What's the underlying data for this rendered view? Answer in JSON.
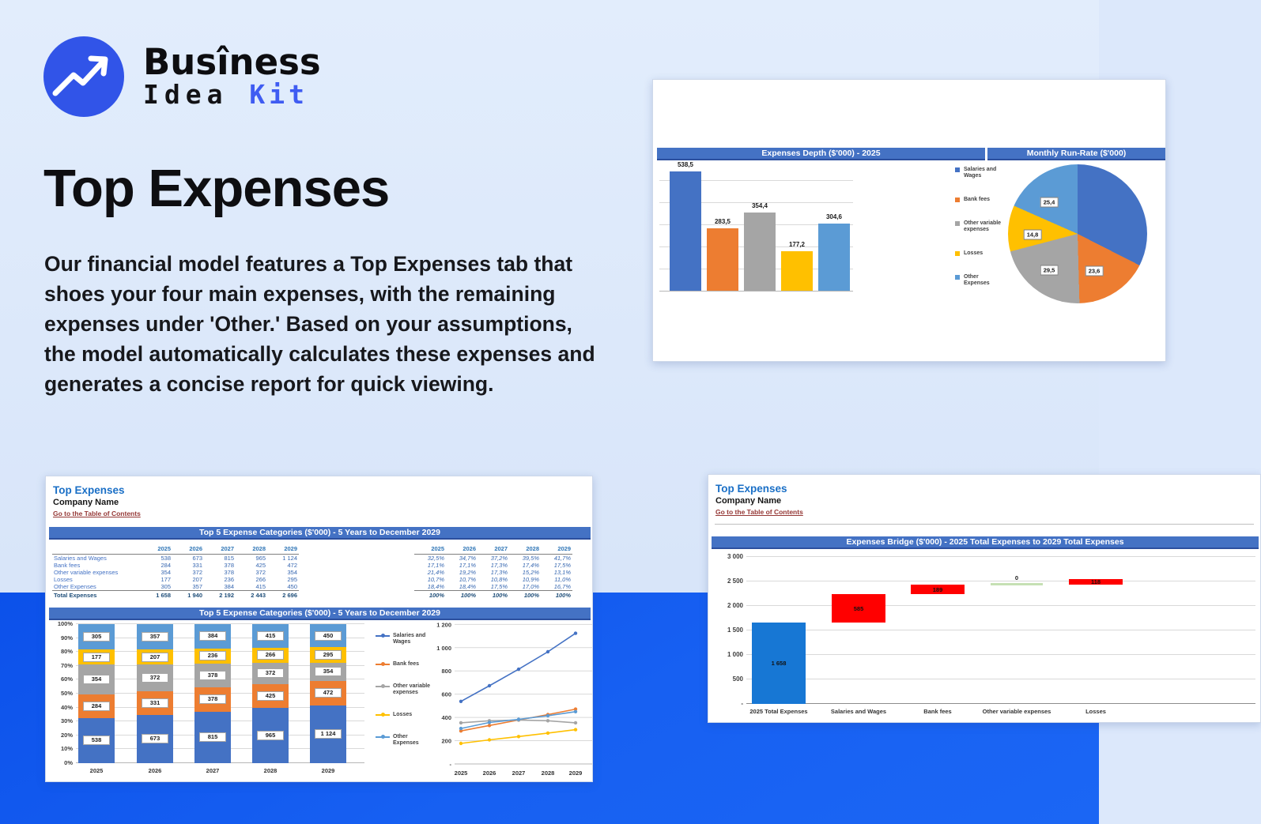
{
  "logo": {
    "brand_top": "Busîness",
    "brand_idea": "Idea",
    "brand_kit": "Kit",
    "icon": "trend-up-arrow",
    "circle_color": "#3154e8",
    "kit_color": "#3f5cf2"
  },
  "hero": {
    "title": "Top Expenses",
    "paragraph": "Our financial model features a Top Expenses tab that shoes your four main expenses, with the remaining expenses under 'Other.' Based on your assumptions, the model automatically calculates these expenses and generates a concise report for quick viewing."
  },
  "palette": {
    "series_names": [
      "Salaries and Wages",
      "Bank fees",
      "Other variable expenses",
      "Losses",
      "Other Expenses"
    ],
    "series_colors": [
      "#4472C4",
      "#ED7D31",
      "#A5A5A5",
      "#FFC000",
      "#5B9BD5"
    ],
    "header_bar": "#4472C4",
    "waterfall_total": "#1777D4",
    "waterfall_increase": "#FF0000",
    "waterfall_zero": "#C6E0B4",
    "link_color": "#953735"
  },
  "depth_card": {
    "bar_title": "Expenses Depth ($'000) - 2025",
    "pie_title": "Monthly Run-Rate ($'000)"
  },
  "sheet1": {
    "title": "Top Expenses",
    "company": "Company Name",
    "link": "Go to the Table of Contents",
    "table_header": "Top 5 Expense Categories ($'000) - 5 Years to December 2029",
    "chart_header": "Top 5 Expense Categories ($'000) - 5 Years to December 2029",
    "years": [
      "2025",
      "2026",
      "2027",
      "2028",
      "2029"
    ],
    "rows": [
      {
        "label": "Salaries and Wages",
        "values": [
          "538",
          "673",
          "815",
          "965",
          "1 124"
        ],
        "pcts": [
          "32,5%",
          "34,7%",
          "37,2%",
          "39,5%",
          "41,7%"
        ]
      },
      {
        "label": "Bank fees",
        "values": [
          "284",
          "331",
          "378",
          "425",
          "472"
        ],
        "pcts": [
          "17,1%",
          "17,1%",
          "17,3%",
          "17,4%",
          "17,5%"
        ]
      },
      {
        "label": "Other variable expenses",
        "values": [
          "354",
          "372",
          "378",
          "372",
          "354"
        ],
        "pcts": [
          "21,4%",
          "19,2%",
          "17,3%",
          "15,2%",
          "13,1%"
        ]
      },
      {
        "label": "Losses",
        "values": [
          "177",
          "207",
          "236",
          "266",
          "295"
        ],
        "pcts": [
          "10,7%",
          "10,7%",
          "10,8%",
          "10,9%",
          "11,0%"
        ]
      },
      {
        "label": "Other Expenses",
        "values": [
          "305",
          "357",
          "384",
          "415",
          "450"
        ],
        "pcts": [
          "18,4%",
          "18,4%",
          "17,5%",
          "17,0%",
          "16,7%"
        ]
      }
    ],
    "total": {
      "label": "Total Expenses",
      "values": [
        "1 658",
        "1 940",
        "2 192",
        "2 443",
        "2 696"
      ],
      "pcts": [
        "100%",
        "100%",
        "100%",
        "100%",
        "100%"
      ]
    }
  },
  "sheet2": {
    "title": "Top Expenses",
    "company": "Company Name",
    "link": "Go to the Table of Contents",
    "chart_header": "Expenses Bridge ($'000) - 2025 Total Expenses to 2029 Total Expenses"
  },
  "chart_data": [
    {
      "id": "expenses_depth",
      "type": "bar",
      "title": "Expenses Depth ($'000) - 2025",
      "categories": [
        "Salaries and Wages",
        "Bank fees",
        "Other variable expenses",
        "Losses",
        "Other Expenses"
      ],
      "values": [
        538.5,
        283.5,
        354.4,
        177.2,
        304.6
      ],
      "labels": [
        "538,5",
        "283,5",
        "354,4",
        "177,2",
        "304,6"
      ],
      "ylim": [
        0,
        500
      ],
      "gridline_step": 100,
      "grid": true,
      "legend_position": "right"
    },
    {
      "id": "monthly_run_rate",
      "type": "pie",
      "title": "Monthly Run-Rate ($'000)",
      "slices": [
        {
          "name": "Salaries and Wages",
          "value": 44.9,
          "label": ""
        },
        {
          "name": "Bank fees",
          "value": 23.6,
          "label": "23,6"
        },
        {
          "name": "Other variable expenses",
          "value": 29.5,
          "label": "29,5"
        },
        {
          "name": "Losses",
          "value": 14.8,
          "label": "14,8"
        },
        {
          "name": "Other Expenses",
          "value": 25.4,
          "label": "25,4"
        }
      ]
    },
    {
      "id": "top5_stacked",
      "type": "bar",
      "stacked": true,
      "normalized": true,
      "title": "Top 5 Expense Categories ($'000) - 5 Years to December 2029",
      "categories": [
        "2025",
        "2026",
        "2027",
        "2028",
        "2029"
      ],
      "series": [
        {
          "name": "Salaries and Wages",
          "values": [
            538,
            673,
            815,
            965,
            1124
          ]
        },
        {
          "name": "Bank fees",
          "values": [
            284,
            331,
            378,
            425,
            472
          ]
        },
        {
          "name": "Other variable expenses",
          "values": [
            354,
            372,
            378,
            372,
            354
          ]
        },
        {
          "name": "Losses",
          "values": [
            177,
            207,
            236,
            266,
            295
          ]
        },
        {
          "name": "Other Expenses",
          "values": [
            305,
            357,
            384,
            415,
            450
          ]
        }
      ],
      "yticks": [
        "0%",
        "10%",
        "20%",
        "30%",
        "40%",
        "50%",
        "60%",
        "70%",
        "80%",
        "90%",
        "100%"
      ],
      "grid": true,
      "legend_position": "right"
    },
    {
      "id": "top5_lines",
      "type": "line",
      "categories": [
        "2025",
        "2026",
        "2027",
        "2028",
        "2029"
      ],
      "series": [
        {
          "name": "Salaries and Wages",
          "values": [
            538,
            673,
            815,
            965,
            1124
          ]
        },
        {
          "name": "Bank fees",
          "values": [
            284,
            331,
            378,
            425,
            472
          ]
        },
        {
          "name": "Other variable expenses",
          "values": [
            354,
            372,
            378,
            372,
            354
          ]
        },
        {
          "name": "Losses",
          "values": [
            177,
            207,
            236,
            266,
            295
          ]
        },
        {
          "name": "Other Expenses",
          "values": [
            305,
            357,
            384,
            415,
            450
          ]
        }
      ],
      "ylim": [
        0,
        1200
      ],
      "yticks": [
        "-",
        "200",
        "400",
        "600",
        "800",
        "1 000",
        "1 200"
      ],
      "grid": true
    },
    {
      "id": "expenses_bridge",
      "type": "bar",
      "subtype": "waterfall",
      "title": "Expenses Bridge ($'000) - 2025 Total Expenses to 2029 Total Expenses",
      "categories": [
        "2025 Total Expenses",
        "Salaries and Wages",
        "Bank fees",
        "Other variable expenses",
        "Losses"
      ],
      "steps": [
        {
          "label": "1 658",
          "value": 1658,
          "kind": "total"
        },
        {
          "label": "585",
          "value": 585,
          "kind": "increase"
        },
        {
          "label": "189",
          "value": 189,
          "kind": "increase"
        },
        {
          "label": "0",
          "value": 0,
          "kind": "zero"
        },
        {
          "label": "118",
          "value": 118,
          "kind": "increase"
        }
      ],
      "ylim": [
        0,
        3000
      ],
      "yticks": [
        "-",
        "500",
        "1 000",
        "1 500",
        "2 000",
        "2 500",
        "3 000"
      ],
      "grid": true
    }
  ]
}
